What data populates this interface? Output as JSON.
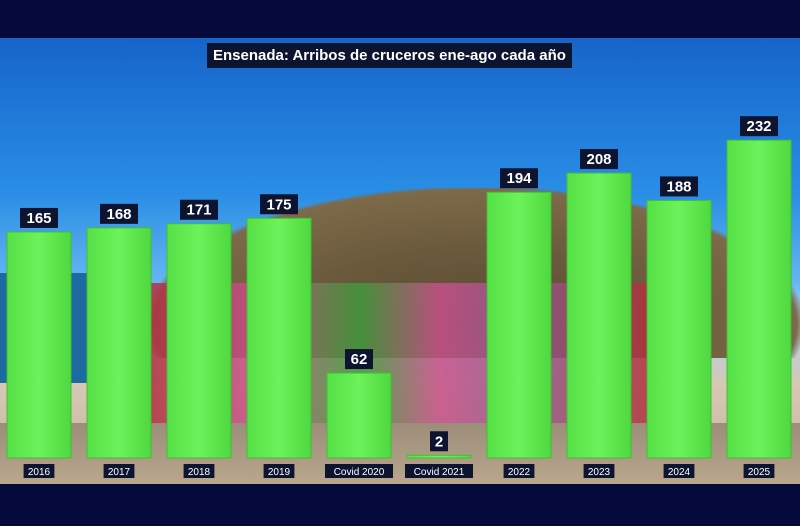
{
  "chart_data": {
    "type": "bar",
    "title": "Ensenada: Arribos de cruceros ene-ago cada año",
    "categories": [
      "2016",
      "2017",
      "2018",
      "2019",
      "Covid 2020",
      "Covid 2021",
      "2022",
      "2023",
      "2024",
      "2025"
    ],
    "values": [
      165,
      168,
      171,
      175,
      62,
      2,
      194,
      208,
      188,
      232
    ],
    "xlabel": "",
    "ylabel": "",
    "ylim": [
      0,
      240
    ],
    "grid": false,
    "legend": "none",
    "colors": {
      "bar": "#6cf25a",
      "bar_edge": "#3fbf34",
      "label_bg": "#0d1430",
      "label_text": "#ffffff",
      "background": "#050a3a"
    }
  }
}
